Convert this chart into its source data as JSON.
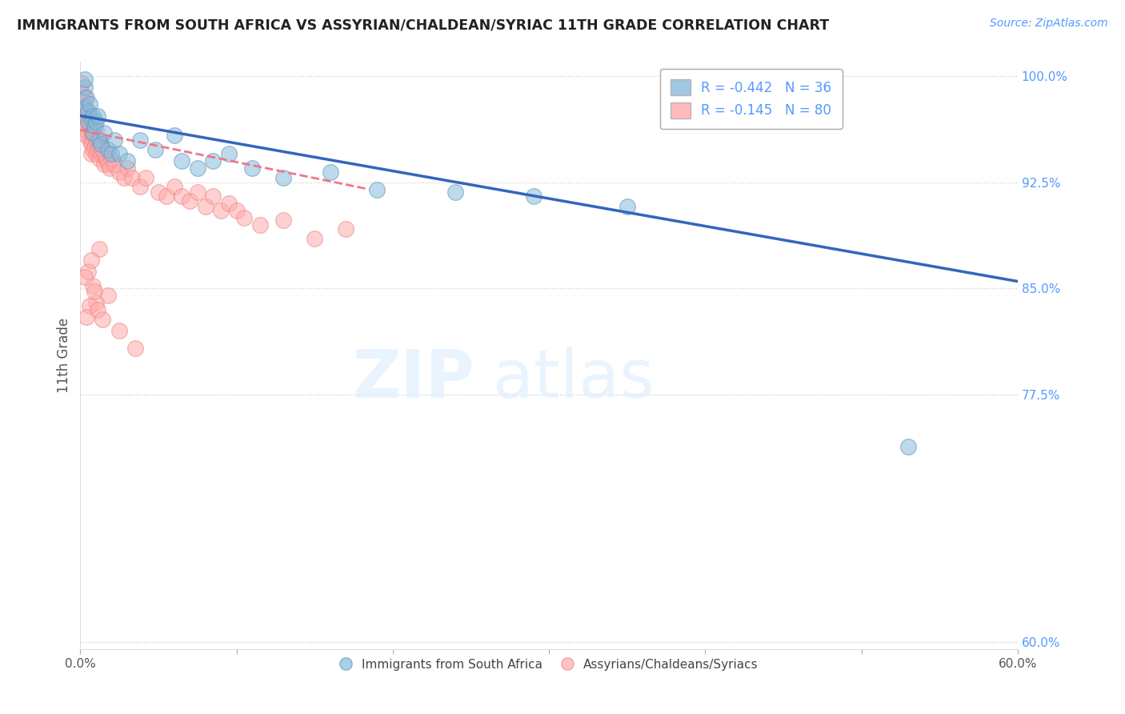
{
  "title": "IMMIGRANTS FROM SOUTH AFRICA VS ASSYRIAN/CHALDEAN/SYRIAC 11TH GRADE CORRELATION CHART",
  "source": "Source: ZipAtlas.com",
  "ylabel": "11th Grade",
  "xlim": [
    0.0,
    0.6
  ],
  "ylim": [
    0.595,
    1.01
  ],
  "yticks": [
    1.0,
    0.925,
    0.85,
    0.775,
    0.6
  ],
  "ytick_labels": [
    "100.0%",
    "92.5%",
    "85.0%",
    "77.5%",
    "60.0%"
  ],
  "xticks": [
    0.0,
    0.1,
    0.2,
    0.3,
    0.4,
    0.5,
    0.6
  ],
  "blue_R": -0.442,
  "blue_N": 36,
  "pink_R": -0.145,
  "pink_N": 80,
  "blue_color": "#88BBDD",
  "pink_color": "#FFAAAA",
  "blue_edge_color": "#6699BB",
  "pink_edge_color": "#EE8888",
  "blue_line_color": "#3366BB",
  "pink_line_color": "#EE7788",
  "legend_label_blue": "Immigrants from South Africa",
  "legend_label_pink": "Assyrians/Chaldeans/Syriacs",
  "blue_line_x": [
    0.0,
    0.6
  ],
  "blue_line_y": [
    0.972,
    0.855
  ],
  "pink_line_x": [
    0.0,
    0.185
  ],
  "pink_line_y": [
    0.962,
    0.92
  ],
  "blue_scatter_x": [
    0.002,
    0.003,
    0.003,
    0.004,
    0.005,
    0.005,
    0.006,
    0.007,
    0.008,
    0.008,
    0.009,
    0.01,
    0.011,
    0.012,
    0.013,
    0.015,
    0.018,
    0.02,
    0.022,
    0.025,
    0.03,
    0.038,
    0.048,
    0.06,
    0.065,
    0.075,
    0.085,
    0.095,
    0.11,
    0.13,
    0.16,
    0.19,
    0.24,
    0.29,
    0.35,
    0.53
  ],
  "blue_scatter_y": [
    0.978,
    0.992,
    0.998,
    0.985,
    0.975,
    0.968,
    0.98,
    0.97,
    0.972,
    0.96,
    0.965,
    0.968,
    0.972,
    0.955,
    0.952,
    0.96,
    0.948,
    0.945,
    0.955,
    0.945,
    0.94,
    0.955,
    0.948,
    0.958,
    0.94,
    0.935,
    0.94,
    0.945,
    0.935,
    0.928,
    0.932,
    0.92,
    0.918,
    0.915,
    0.908,
    0.738
  ],
  "pink_scatter_x": [
    0.001,
    0.001,
    0.002,
    0.002,
    0.002,
    0.003,
    0.003,
    0.003,
    0.004,
    0.004,
    0.004,
    0.005,
    0.005,
    0.005,
    0.006,
    0.006,
    0.006,
    0.007,
    0.007,
    0.007,
    0.007,
    0.008,
    0.008,
    0.008,
    0.009,
    0.009,
    0.01,
    0.01,
    0.01,
    0.011,
    0.011,
    0.012,
    0.012,
    0.013,
    0.013,
    0.014,
    0.015,
    0.015,
    0.016,
    0.017,
    0.018,
    0.019,
    0.02,
    0.022,
    0.025,
    0.028,
    0.03,
    0.033,
    0.038,
    0.042,
    0.05,
    0.055,
    0.06,
    0.065,
    0.07,
    0.075,
    0.08,
    0.085,
    0.09,
    0.095,
    0.1,
    0.105,
    0.115,
    0.13,
    0.15,
    0.17,
    0.01,
    0.008,
    0.005,
    0.012,
    0.007,
    0.003,
    0.009,
    0.006,
    0.004,
    0.011,
    0.014,
    0.018,
    0.025,
    0.035
  ],
  "pink_scatter_y": [
    0.995,
    0.988,
    0.982,
    0.975,
    0.97,
    0.985,
    0.978,
    0.968,
    0.972,
    0.965,
    0.958,
    0.975,
    0.968,
    0.96,
    0.972,
    0.965,
    0.955,
    0.968,
    0.96,
    0.952,
    0.945,
    0.96,
    0.955,
    0.948,
    0.958,
    0.95,
    0.962,
    0.955,
    0.945,
    0.955,
    0.948,
    0.95,
    0.942,
    0.952,
    0.945,
    0.948,
    0.945,
    0.938,
    0.942,
    0.94,
    0.938,
    0.935,
    0.942,
    0.938,
    0.932,
    0.928,
    0.935,
    0.928,
    0.922,
    0.928,
    0.918,
    0.915,
    0.922,
    0.915,
    0.912,
    0.918,
    0.908,
    0.915,
    0.905,
    0.91,
    0.905,
    0.9,
    0.895,
    0.898,
    0.885,
    0.892,
    0.84,
    0.852,
    0.862,
    0.878,
    0.87,
    0.858,
    0.848,
    0.838,
    0.83,
    0.835,
    0.828,
    0.845,
    0.82,
    0.808
  ]
}
